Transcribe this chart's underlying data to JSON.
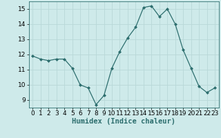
{
  "x": [
    0,
    1,
    2,
    3,
    4,
    5,
    6,
    7,
    8,
    9,
    10,
    11,
    12,
    13,
    14,
    15,
    16,
    17,
    18,
    19,
    20,
    21,
    22,
    23
  ],
  "y": [
    11.9,
    11.7,
    11.6,
    11.7,
    11.7,
    11.1,
    10.0,
    9.8,
    8.7,
    9.3,
    11.1,
    12.2,
    13.1,
    13.8,
    15.1,
    15.2,
    14.5,
    15.0,
    14.0,
    12.3,
    11.1,
    9.9,
    9.5,
    9.8
  ],
  "xlabel": "Humidex (Indice chaleur)",
  "xlim": [
    -0.5,
    23.5
  ],
  "ylim": [
    8.5,
    15.5
  ],
  "yticks": [
    9,
    10,
    11,
    12,
    13,
    14,
    15
  ],
  "xticks": [
    0,
    1,
    2,
    3,
    4,
    5,
    6,
    7,
    8,
    9,
    10,
    11,
    12,
    13,
    14,
    15,
    16,
    17,
    18,
    19,
    20,
    21,
    22,
    23
  ],
  "line_color": "#2d6e6e",
  "marker": "D",
  "marker_size": 2.0,
  "bg_color": "#ceeaea",
  "grid_color": "#b8d8d8",
  "label_fontsize": 7.5,
  "tick_fontsize": 6.5
}
